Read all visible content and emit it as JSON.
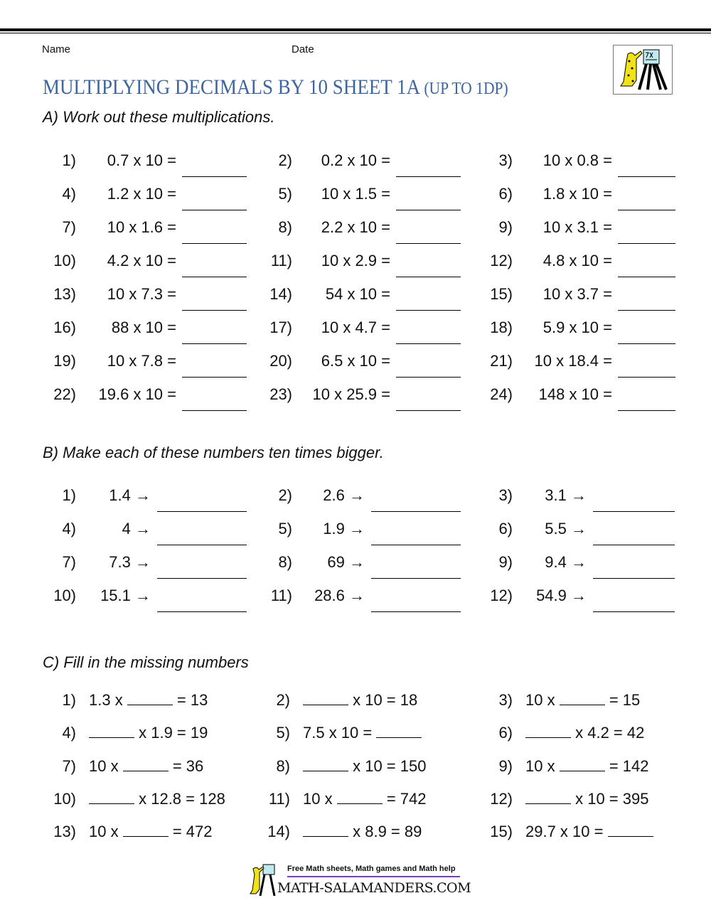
{
  "header": {
    "name_label": "Name",
    "date_label": "Date",
    "title": "MULTIPLYING DECIMALS BY 10 SHEET 1A",
    "title_suffix": "(UP TO 1DP)",
    "logo_board_text": "7x5=35"
  },
  "section_a": {
    "heading": "A) Work out these multiplications.",
    "items": [
      {
        "num": "1)",
        "expr": "0.7 x 10 ="
      },
      {
        "num": "2)",
        "expr": "0.2 x 10 ="
      },
      {
        "num": "3)",
        "expr": "10 x 0.8 ="
      },
      {
        "num": "4)",
        "expr": "1.2 x 10 ="
      },
      {
        "num": "5)",
        "expr": "10 x 1.5 ="
      },
      {
        "num": "6)",
        "expr": "1.8 x 10 ="
      },
      {
        "num": "7)",
        "expr": "10 x 1.6 ="
      },
      {
        "num": "8)",
        "expr": "2.2 x 10 ="
      },
      {
        "num": "9)",
        "expr": "10 x 3.1 ="
      },
      {
        "num": "10)",
        "expr": "4.2 x 10 ="
      },
      {
        "num": "11)",
        "expr": "10 x 2.9 ="
      },
      {
        "num": "12)",
        "expr": "4.8 x 10 ="
      },
      {
        "num": "13)",
        "expr": "10 x 7.3 ="
      },
      {
        "num": "14)",
        "expr": "54 x 10 ="
      },
      {
        "num": "15)",
        "expr": "10 x 3.7 ="
      },
      {
        "num": "16)",
        "expr": "88 x 10 ="
      },
      {
        "num": "17)",
        "expr": "10 x 4.7 ="
      },
      {
        "num": "18)",
        "expr": "5.9 x 10 ="
      },
      {
        "num": "19)",
        "expr": "10 x 7.8 ="
      },
      {
        "num": "20)",
        "expr": "6.5 x 10 ="
      },
      {
        "num": "21)",
        "expr": "10 x 18.4 ="
      },
      {
        "num": "22)",
        "expr": "19.6 x 10 ="
      },
      {
        "num": "23)",
        "expr": "10 x 25.9 ="
      },
      {
        "num": "24)",
        "expr": "148 x 10 ="
      }
    ]
  },
  "section_b": {
    "heading": "B) Make each of these numbers ten times bigger.",
    "items": [
      {
        "num": "1)",
        "expr": "1.4 →"
      },
      {
        "num": "2)",
        "expr": "2.6 →"
      },
      {
        "num": "3)",
        "expr": "3.1 →"
      },
      {
        "num": "4)",
        "expr": "4 →"
      },
      {
        "num": "5)",
        "expr": "1.9 →"
      },
      {
        "num": "6)",
        "expr": "5.5 →"
      },
      {
        "num": "7)",
        "expr": "7.3 →"
      },
      {
        "num": "8)",
        "expr": "69 →"
      },
      {
        "num": "9)",
        "expr": "9.4 →"
      },
      {
        "num": "10)",
        "expr": "15.1 →"
      },
      {
        "num": "11)",
        "expr": "28.6 →"
      },
      {
        "num": "12)",
        "expr": "54.9 →"
      }
    ]
  },
  "section_c": {
    "heading": "C) Fill in the missing numbers",
    "items": [
      {
        "num": "1)",
        "before": "1.3 x ",
        "after": " = 13"
      },
      {
        "num": "2)",
        "before": "",
        "after": " x 10 = 18"
      },
      {
        "num": "3)",
        "before": "10 x ",
        "after": " = 15"
      },
      {
        "num": "4)",
        "before": "",
        "after": " x 1.9 = 19"
      },
      {
        "num": "5)",
        "before": "7.5 x 10 = ",
        "after": ""
      },
      {
        "num": "6)",
        "before": "",
        "after": " x 4.2 = 42"
      },
      {
        "num": "7)",
        "before": "10 x ",
        "after": " = 36"
      },
      {
        "num": "8)",
        "before": "",
        "after": " x 10 = 150"
      },
      {
        "num": "9)",
        "before": "10 x ",
        "after": " = 142"
      },
      {
        "num": "10)",
        "before": "",
        "after": " x 12.8 = 128"
      },
      {
        "num": "11)",
        "before": "10 x ",
        "after": " = 742"
      },
      {
        "num": "12)",
        "before": "",
        "after": " x 10 = 395"
      },
      {
        "num": "13)",
        "before": "10 x ",
        "after": " = 472"
      },
      {
        "num": "14)",
        "before": "",
        "after": " x 8.9 = 89"
      },
      {
        "num": "15)",
        "before": "29.7 x 10 = ",
        "after": ""
      }
    ]
  },
  "footer": {
    "tagline": "Free Math sheets, Math games and Math help",
    "site": "MATH-SALAMANDERS.COM"
  }
}
